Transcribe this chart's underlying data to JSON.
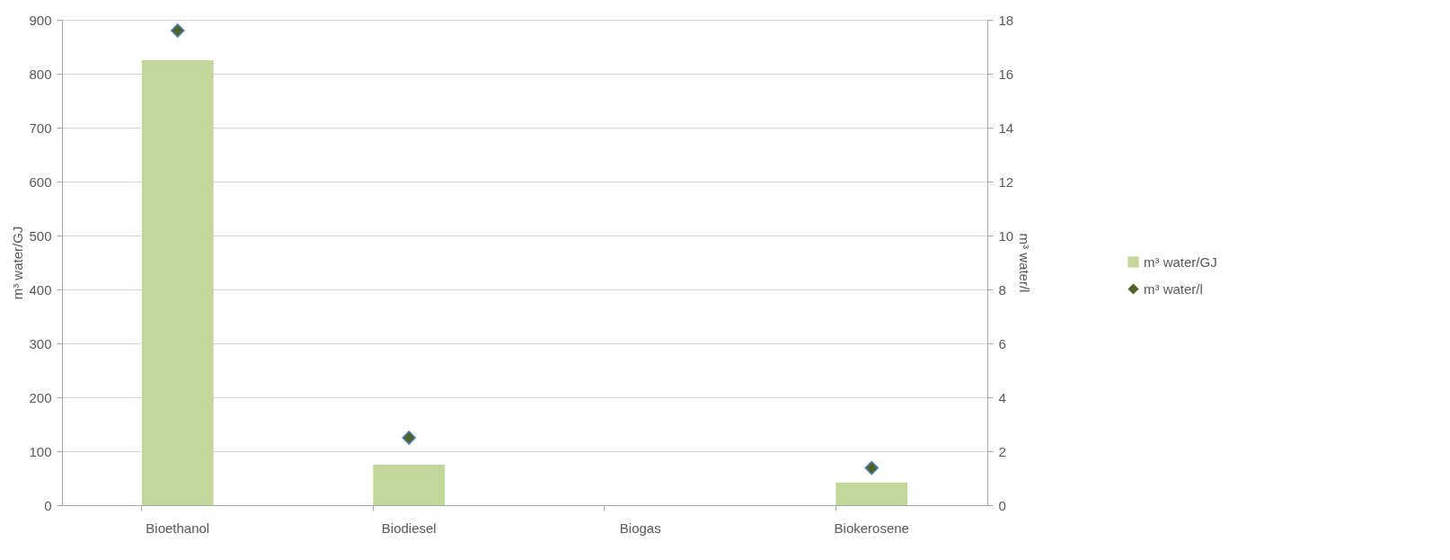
{
  "chart_data": {
    "type": "bar",
    "categories": [
      "Bioethanol",
      "Biodiesel",
      "Biogas",
      "Biokerosene"
    ],
    "series": [
      {
        "name": "m³ water/GJ",
        "color": "#c4d79b",
        "values": [
          825,
          75,
          null,
          42
        ]
      },
      {
        "name": "m³ water/l",
        "type": "scatter",
        "axis": "y2",
        "color": "#4f6228",
        "values": [
          17.6,
          2.5,
          null,
          1.38
        ]
      }
    ],
    "ylabel": "m³ water/GJ",
    "y2label": "m³ water/l",
    "ylim": [
      0,
      900
    ],
    "yticks": [
      0,
      100,
      200,
      300,
      400,
      500,
      600,
      700,
      800,
      900
    ],
    "y2lim": [
      0,
      18
    ],
    "y2ticks": [
      0,
      2,
      4,
      6,
      8,
      10,
      12,
      14,
      16,
      18
    ],
    "grid": "y",
    "legend": "right",
    "marker": "diamond"
  }
}
